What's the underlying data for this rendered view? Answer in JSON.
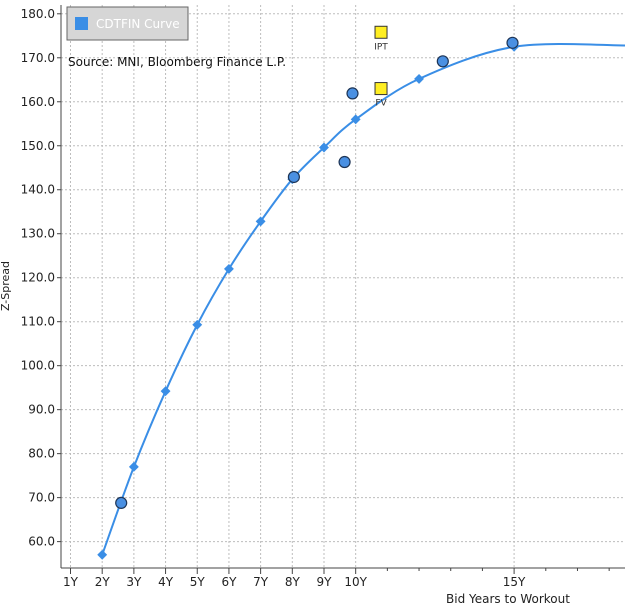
{
  "chart_data": {
    "type": "scatter",
    "title": "",
    "source": "Source: MNI, Bloomberg Finance L.P.",
    "xlabel": "Bid Years to Workout",
    "ylabel": "Z-Spread",
    "xlim": [
      0.7,
      18.5
    ],
    "ylim": [
      54,
      182
    ],
    "x_ticks": [
      {
        "value": 1,
        "label": "1Y"
      },
      {
        "value": 2,
        "label": "2Y"
      },
      {
        "value": 3,
        "label": "3Y"
      },
      {
        "value": 4,
        "label": "4Y"
      },
      {
        "value": 5,
        "label": "5Y"
      },
      {
        "value": 6,
        "label": "6Y"
      },
      {
        "value": 7,
        "label": "7Y"
      },
      {
        "value": 8,
        "label": "8Y"
      },
      {
        "value": 9,
        "label": "9Y"
      },
      {
        "value": 10,
        "label": "10Y"
      },
      {
        "value": 15,
        "label": "15Y"
      }
    ],
    "x_minor_ticks": [
      11,
      12,
      13,
      14,
      16,
      17,
      18
    ],
    "y_ticks": [
      60,
      70,
      80,
      90,
      100,
      110,
      120,
      130,
      140,
      150,
      160,
      170,
      180
    ],
    "y_tick_labels": [
      "60.0",
      "70.0",
      "80.0",
      "90.0",
      "100.0",
      "110.0",
      "120.0",
      "130.0",
      "140.0",
      "150.0",
      "160.0",
      "170.0",
      "180.0"
    ],
    "grid": true,
    "legend": {
      "position": "top-left",
      "label": "CDTFIN Curve",
      "color": "#3a8ee6"
    },
    "curve": {
      "name": "CDTFIN Curve",
      "color": "#3a8ee6",
      "x": [
        2,
        3,
        4,
        5,
        6,
        7,
        8,
        9,
        10,
        12,
        15,
        18.5
      ],
      "y": [
        57,
        77,
        94.2,
        109.3,
        122,
        132.8,
        142.4,
        149.6,
        156,
        165.2,
        172.5,
        172.8
      ],
      "markers_x": [
        2,
        3,
        4,
        5,
        6,
        7,
        8,
        9,
        10,
        12,
        15
      ]
    },
    "bonds": {
      "color": "#4a90e2",
      "x": [
        2.6,
        8.05,
        9.65,
        9.9,
        12.75,
        14.95
      ],
      "y": [
        68.8,
        142.9,
        146.3,
        161.9,
        169.2,
        173.4
      ]
    },
    "annotations": [
      {
        "label": "IPT",
        "x": 10.8,
        "y": 175.8,
        "color": "#ffee22"
      },
      {
        "label": "FV",
        "x": 10.8,
        "y": 163,
        "color": "#ffee22"
      }
    ]
  }
}
